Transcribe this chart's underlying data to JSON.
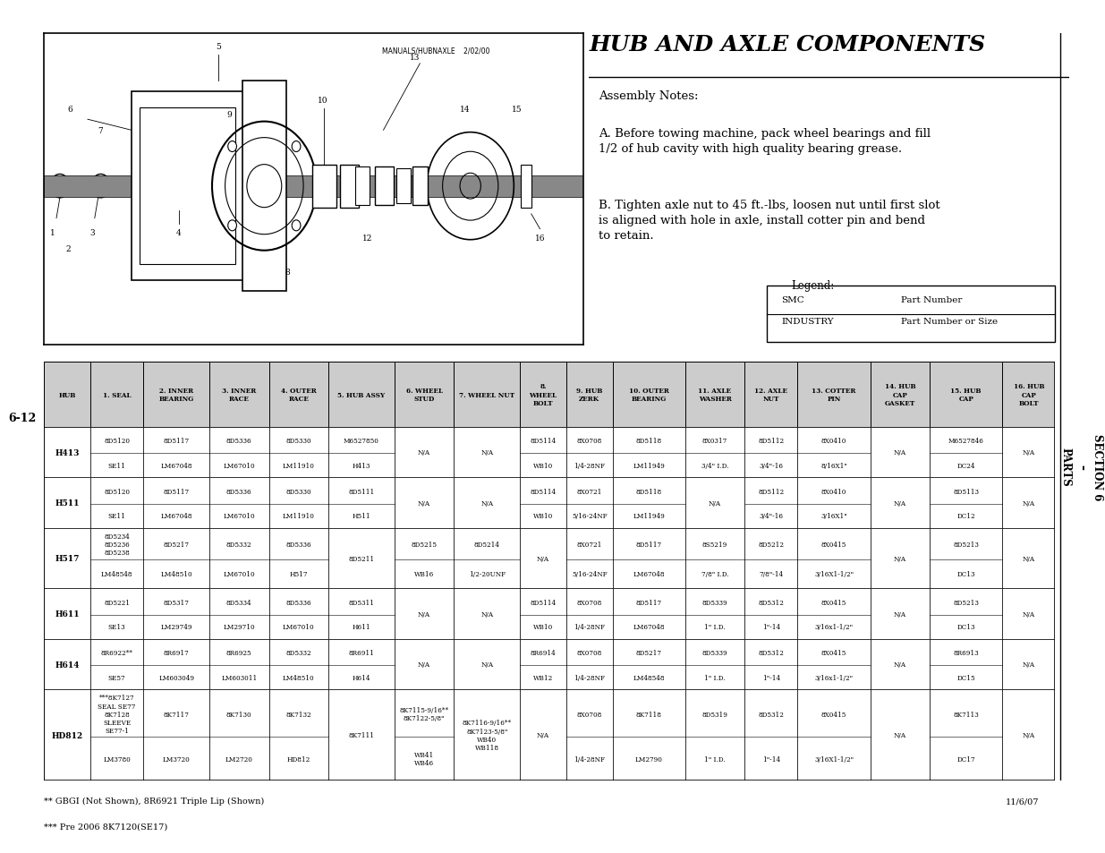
{
  "title": "HUB AND AXLE COMPONENTS",
  "assembly_notes_title": "Assembly Notes:",
  "note_a": "A. Before towing machine, pack wheel bearings and fill\n1/2 of hub cavity with high quality bearing grease.",
  "note_b": "B. Tighten axle nut to 45 ft.-lbs, loosen nut until first slot\nis aligned with hole in axle, install cotter pin and bend\nto retain.",
  "legend_title": "Legend:",
  "legend_smc": "SMC",
  "legend_smc_desc": "Part Number",
  "legend_industry": "INDUSTRY",
  "legend_industry_desc": "Part Number or Size",
  "diagram_text": "MANUALS/HUBNAXLE    2/02/00",
  "section_label": "SECTION 6 – PARTS",
  "page_label": "6-12",
  "footnote1": "** GBGI (Not Shown), 8R6921 Triple Lip (Shown)",
  "footnote2": "*** Pre 2006 8K7120(SE17)",
  "date": "11/6/07",
  "col_headers": [
    "HUB",
    "1. SEAL",
    "2. INNER\nBEARING",
    "3. INNER\nRACE",
    "4. OUTER\nRACE",
    "5. HUB ASSY",
    "6. WHEEL\nSTUD",
    "7. WHEEL NUT",
    "8.\nWHEEL\nBOLT",
    "9. HUB\nZERK",
    "10. OUTER\nBEARING",
    "11. AXLE\nWASHER",
    "12. AXLE\nNUT",
    "13. COTTER\nPIN",
    "14. HUB\nCAP\nGASKET",
    "15. HUB\nCAP",
    "16. HUB\nCAP\nBOLT"
  ],
  "bg_color": "#ffffff",
  "header_bg": "#cccccc",
  "text_color": "#000000"
}
